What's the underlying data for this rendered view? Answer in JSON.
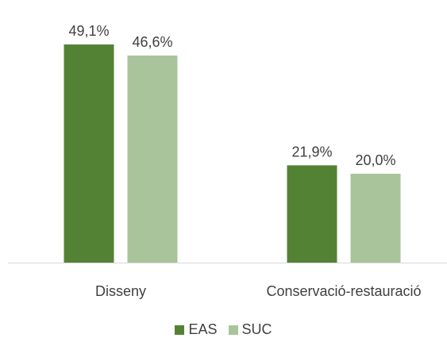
{
  "colors": {
    "EAS": "#548235",
    "SUC": "#a9c49a",
    "axis": "#d9d9d9",
    "text": "#404040"
  },
  "chart_data": {
    "type": "bar",
    "categories": [
      "Disseny",
      "Conservació-restauració"
    ],
    "series": [
      {
        "name": "EAS",
        "values": [
          49.1,
          21.9
        ],
        "labels": [
          "49,1%",
          "21,9%"
        ]
      },
      {
        "name": "SUC",
        "values": [
          46.6,
          20.0
        ],
        "labels": [
          "46,6%",
          "20,0%"
        ]
      }
    ],
    "ylim": [
      0,
      50
    ],
    "grid": false,
    "legend": "bottom",
    "title": "",
    "xlabel": "",
    "ylabel": ""
  }
}
